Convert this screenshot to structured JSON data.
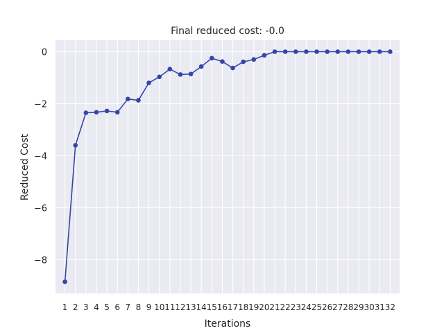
{
  "chart_data": {
    "type": "line",
    "title": "Final reduced cost: -0.0",
    "xlabel": "Iterations",
    "ylabel": "Reduced Cost",
    "x": [
      1,
      2,
      3,
      4,
      5,
      6,
      7,
      8,
      9,
      10,
      11,
      12,
      13,
      14,
      15,
      16,
      17,
      18,
      19,
      20,
      21,
      22,
      23,
      24,
      25,
      26,
      27,
      28,
      29,
      30,
      31,
      32
    ],
    "x_tick_labels": [
      "1",
      "2",
      "3",
      "4",
      "5",
      "6",
      "7",
      "8",
      "9",
      "10",
      "11",
      "12",
      "13",
      "14",
      "15",
      "16",
      "17",
      "18",
      "19",
      "20",
      "21",
      "22",
      "23",
      "24",
      "25",
      "26",
      "27",
      "28",
      "29",
      "30",
      "31",
      "32"
    ],
    "series": [
      {
        "values": [
          -8.85,
          -3.6,
          -2.35,
          -2.33,
          -2.28,
          -2.33,
          -1.82,
          -1.87,
          -1.2,
          -0.97,
          -0.67,
          -0.88,
          -0.86,
          -0.57,
          -0.25,
          -0.38,
          -0.63,
          -0.39,
          -0.3,
          -0.14,
          0,
          0,
          0,
          0,
          0,
          0,
          0,
          0,
          0,
          0,
          0,
          0
        ],
        "color": "#3446a6"
      }
    ],
    "y_ticks": [
      0,
      -2,
      -4,
      -6,
      -8
    ],
    "y_tick_labels": [
      "0",
      "−2",
      "−4",
      "−6",
      "−8"
    ],
    "xlim": [
      0.1,
      32.9
    ],
    "ylim": [
      -9.3,
      0.44
    ],
    "grid": true,
    "background": "#eaeaf2",
    "grid_color": "#ffffff"
  }
}
